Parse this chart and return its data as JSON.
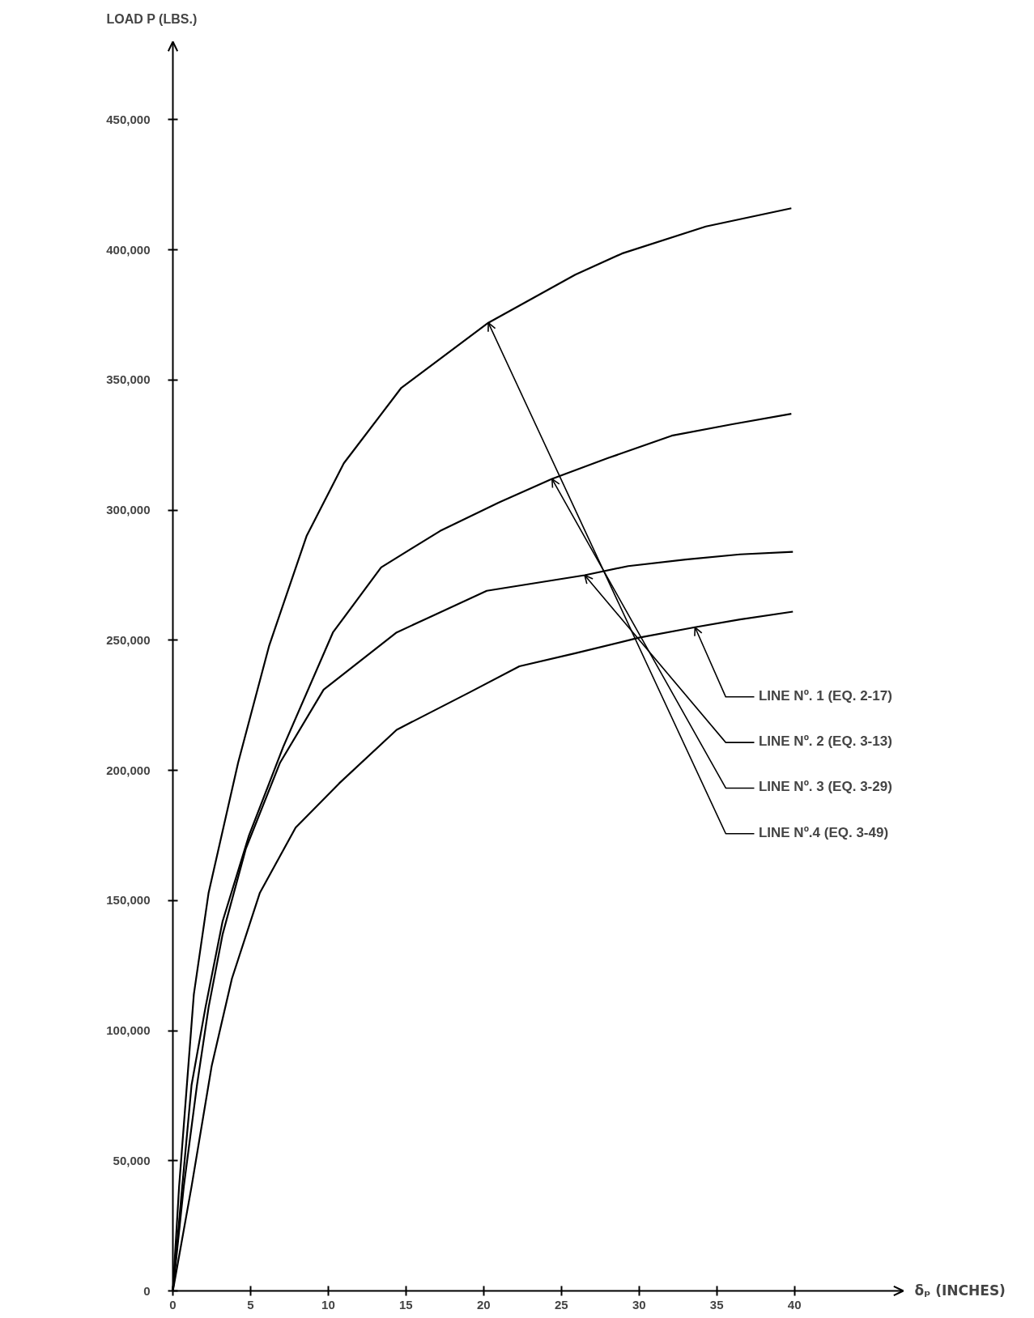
{
  "chart_data": {
    "type": "line",
    "xlabel": "δₚ (INCHES)",
    "ylabel": "LOAD P (LBS.)",
    "xlim": [
      0,
      47
    ],
    "ylim": [
      0,
      480000
    ],
    "xticks": [
      0,
      5,
      10,
      15,
      20,
      25,
      30,
      35,
      40
    ],
    "yticks": [
      {
        "value": 0,
        "label": "0"
      },
      {
        "value": 50000,
        "label": "50,000"
      },
      {
        "value": 100000,
        "label": "100,000"
      },
      {
        "value": 150000,
        "label": "150,000"
      },
      {
        "value": 200000,
        "label": "200,000"
      },
      {
        "value": 250000,
        "label": "250,000"
      },
      {
        "value": 300000,
        "label": "300,000"
      },
      {
        "value": 350000,
        "label": "350,000"
      },
      {
        "value": 400000,
        "label": "400,000"
      },
      {
        "value": 450000,
        "label": "450,000"
      }
    ],
    "line_style": "solid",
    "series": [
      {
        "color": "#000000",
        "x": [
          0,
          1.2,
          2.5,
          3.8,
          5.6,
          7.9,
          10.7,
          14.4,
          19.1,
          22.3,
          25.9,
          30,
          33.6,
          36.5,
          39.9
        ],
        "values": [
          0,
          40000,
          86500,
          120000,
          153000,
          178000,
          195000,
          215600,
          230000,
          240000,
          245000,
          251000,
          255000,
          258000,
          261000
        ]
      },
      {
        "color": "#000000",
        "x": [
          0,
          0.7,
          1.55,
          2.3,
          3.2,
          4.7,
          6.9,
          9.7,
          14.4,
          20.2,
          26.5,
          29.3,
          33,
          36.5,
          39.9
        ],
        "values": [
          0,
          40000,
          79000,
          109000,
          137000,
          170000,
          203000,
          231000,
          253000,
          269000,
          275000,
          278500,
          281000,
          283000,
          284000
        ]
      },
      {
        "color": "#000000",
        "x": [
          0,
          0.6,
          1.2,
          2.1,
          3.2,
          4.9,
          7.1,
          10.3,
          13.4,
          17.2,
          21,
          24.4,
          28,
          32.1,
          36,
          39.8
        ],
        "values": [
          0,
          40000,
          79000,
          109000,
          142000,
          175000,
          209000,
          253000,
          278000,
          292000,
          303000,
          312000,
          320000,
          328600,
          333000,
          337000
        ]
      },
      {
        "color": "#000000",
        "x": [
          0,
          0.4,
          0.9,
          1.35,
          2.3,
          4.2,
          6.2,
          8.6,
          11,
          14.7,
          20.3,
          25.9,
          28.9,
          34.3,
          39.8
        ],
        "values": [
          0,
          40000,
          79000,
          114000,
          153000,
          203000,
          248000,
          290000,
          318000,
          347000,
          372000,
          390500,
          398600,
          409000,
          416000
        ]
      }
    ],
    "annotations": [
      {
        "text": "LINE Nº. 1  (EQ. 2-17)",
        "x": 33.6,
        "y": 255000
      },
      {
        "text": "LINE Nº. 2  (EQ. 3-13)",
        "x": 26.5,
        "y": 275000
      },
      {
        "text": "LINE Nº. 3  (EQ. 3-29)",
        "x": 24.4,
        "y": 312000
      },
      {
        "text": "LINE Nº.4  (EQ. 3-49)",
        "x": 20.3,
        "y": 372000
      }
    ]
  }
}
